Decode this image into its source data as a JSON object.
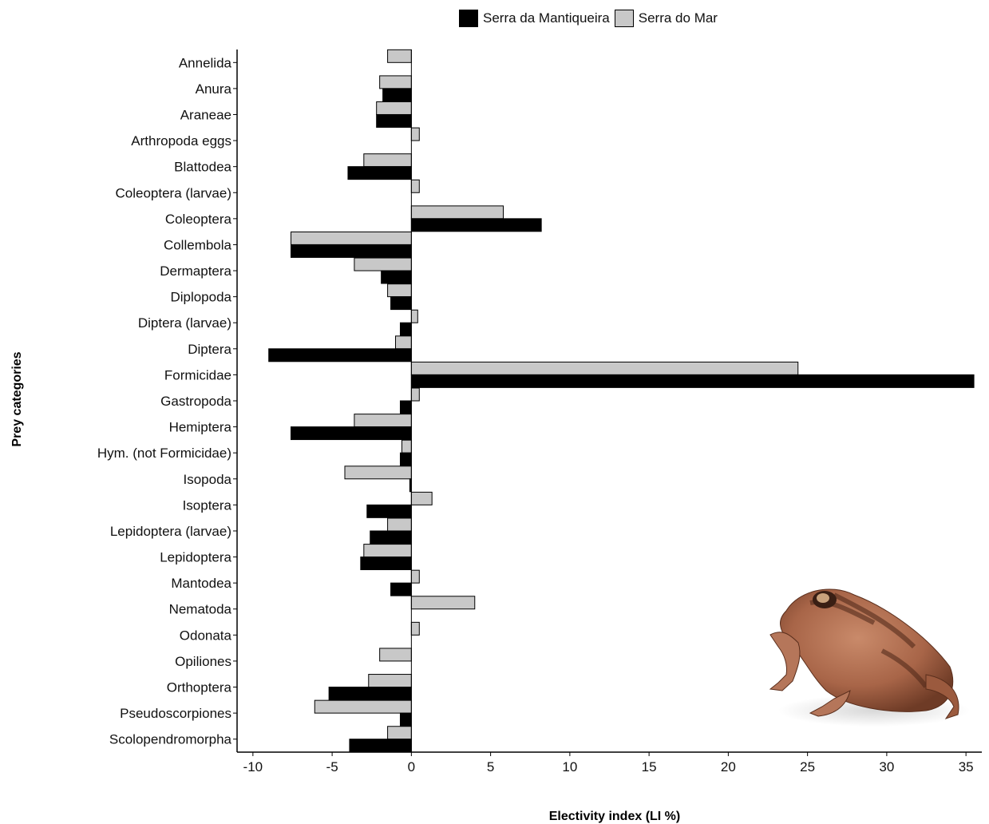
{
  "chart_data": {
    "type": "bar",
    "orientation": "horizontal",
    "xlabel": "Electivity index (LI %)",
    "ylabel": "Prey categories",
    "xlim": [
      -11,
      36
    ],
    "x_ticks": [
      -10,
      -5,
      0,
      5,
      10,
      15,
      20,
      25,
      30,
      35
    ],
    "legend_position": "top",
    "grid": false,
    "categories": [
      "Annelida",
      "Anura",
      "Araneae",
      "Arthropoda eggs",
      "Blattodea",
      "Coleoptera (larvae)",
      "Coleoptera",
      "Collembola",
      "Dermaptera",
      "Diplopoda",
      "Diptera (larvae)",
      "Diptera",
      "Formicidae",
      "Gastropoda",
      "Hemiptera",
      "Hym. (not Formicidae)",
      "Isopoda",
      "Isoptera",
      "Lepidoptera (larvae)",
      "Lepidoptera",
      "Mantodea",
      "Nematoda",
      "Odonata",
      "Opiliones",
      "Orthoptera",
      "Pseudoscorpiones",
      "Scolopendromorpha"
    ],
    "series": [
      {
        "name": "Serra da Mantiqueira",
        "color": "#000000",
        "values": [
          0,
          -1.8,
          -2.2,
          0,
          -4.0,
          0,
          8.2,
          -7.6,
          -1.9,
          -1.3,
          -0.7,
          -9.0,
          35.5,
          -0.7,
          -7.6,
          -0.7,
          -0.1,
          -2.8,
          -2.6,
          -3.2,
          -1.3,
          0,
          0,
          0,
          -5.2,
          -0.7,
          -3.9
        ]
      },
      {
        "name": "Serra do Mar",
        "color": "#c8c8c8",
        "values": [
          -1.5,
          -2.0,
          -2.2,
          0.5,
          -3.0,
          0.5,
          5.8,
          -7.6,
          -3.6,
          -1.5,
          0.4,
          -1.0,
          24.4,
          0.5,
          -3.6,
          -0.6,
          -4.2,
          1.3,
          -1.5,
          -3.0,
          0.5,
          4.0,
          0.5,
          -2.0,
          -2.7,
          -6.1,
          -1.5
        ]
      }
    ]
  },
  "photo": {
    "subject": "frog"
  }
}
